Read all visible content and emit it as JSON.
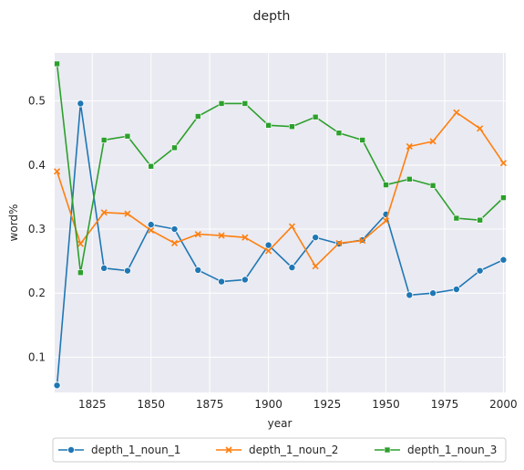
{
  "chart_data": {
    "type": "line",
    "title": "depth",
    "xlabel": "year",
    "ylabel": "word%",
    "xlim": [
      1809,
      2001
    ],
    "ylim": [
      0.045,
      0.575
    ],
    "xticks": [
      1825,
      1850,
      1875,
      1900,
      1925,
      1950,
      1975,
      2000
    ],
    "yticks": [
      0.1,
      0.2,
      0.3,
      0.4,
      0.5
    ],
    "x": [
      1810,
      1820,
      1830,
      1840,
      1850,
      1860,
      1870,
      1880,
      1890,
      1900,
      1910,
      1920,
      1930,
      1940,
      1950,
      1960,
      1970,
      1980,
      1990,
      2000
    ],
    "series": [
      {
        "name": "depth_1_noun_1",
        "color": "#1f77b4",
        "marker": "circle",
        "values": [
          0.056,
          0.496,
          0.239,
          0.235,
          0.307,
          0.3,
          0.236,
          0.218,
          0.221,
          0.275,
          0.24,
          0.287,
          0.277,
          0.283,
          0.323,
          0.197,
          0.2,
          0.206,
          0.235,
          0.252
        ]
      },
      {
        "name": "depth_1_noun_2",
        "color": "#ff7f0e",
        "marker": "x",
        "values": [
          0.39,
          0.277,
          0.326,
          0.324,
          0.298,
          0.278,
          0.292,
          0.29,
          0.287,
          0.266,
          0.304,
          0.242,
          0.278,
          0.282,
          0.313,
          0.429,
          0.437,
          0.482,
          0.457,
          0.403
        ]
      },
      {
        "name": "depth_1_noun_3",
        "color": "#2ca02c",
        "marker": "square",
        "values": [
          0.558,
          0.232,
          0.439,
          0.445,
          0.398,
          0.427,
          0.476,
          0.496,
          0.496,
          0.462,
          0.46,
          0.475,
          0.45,
          0.439,
          0.369,
          0.378,
          0.368,
          0.317,
          0.314,
          0.349
        ]
      }
    ],
    "legend": "bottom",
    "grid": true,
    "background": "#eaeaf2"
  }
}
